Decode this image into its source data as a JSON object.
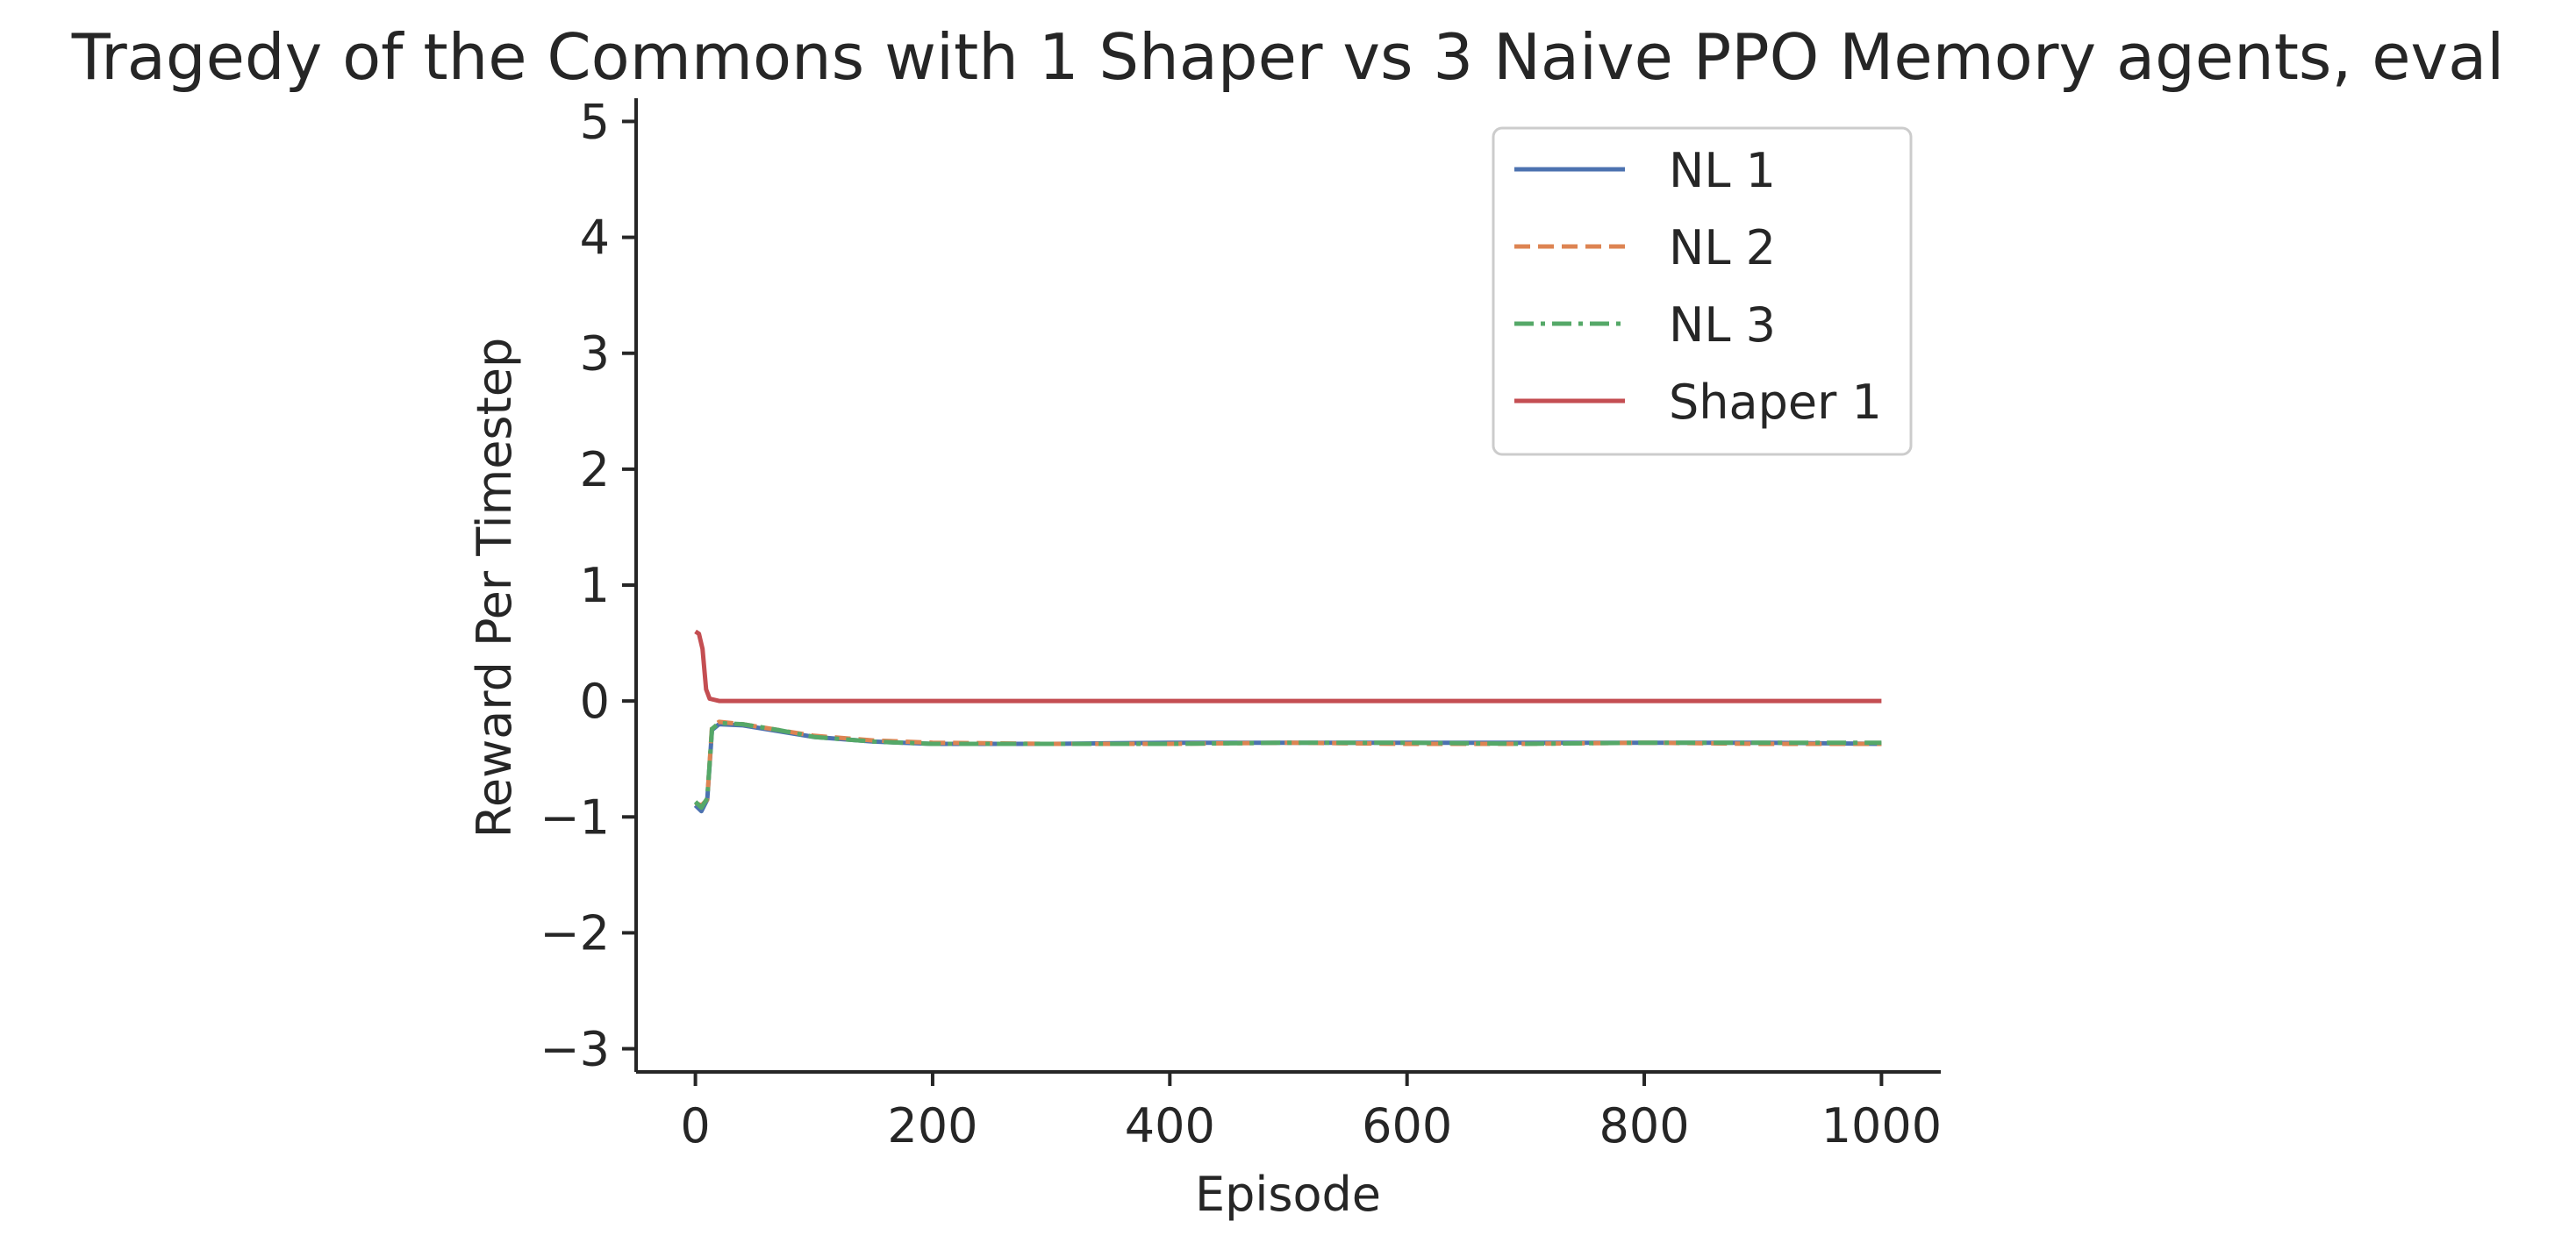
{
  "chart_data": {
    "type": "line",
    "title": "Tragedy of the Commons with 1 Shaper vs 3 Naive PPO Memory agents, eval",
    "xlabel": "Episode",
    "ylabel": "Reward Per Timestep",
    "xlim": [
      -50,
      1050
    ],
    "ylim": [
      -3.2,
      5.2
    ],
    "xticks": [
      0,
      200,
      400,
      600,
      800,
      1000
    ],
    "yticks": [
      -3,
      -2,
      -1,
      0,
      1,
      2,
      3,
      4,
      5
    ],
    "xtick_labels": [
      "0",
      "200",
      "400",
      "600",
      "800",
      "1000"
    ],
    "ytick_labels": [
      "−3",
      "−2",
      "−1",
      "0",
      "1",
      "2",
      "3",
      "4",
      "5"
    ],
    "grid": false,
    "legend_position": "top-right",
    "series": [
      {
        "name": "NL 1",
        "color": "#4c72b0",
        "dash": "solid",
        "points": [
          [
            0,
            -0.9
          ],
          [
            5,
            -0.95
          ],
          [
            10,
            -0.85
          ],
          [
            14,
            -0.25
          ],
          [
            20,
            -0.2
          ],
          [
            40,
            -0.21
          ],
          [
            70,
            -0.26
          ],
          [
            100,
            -0.31
          ],
          [
            150,
            -0.35
          ],
          [
            200,
            -0.37
          ],
          [
            300,
            -0.37
          ],
          [
            400,
            -0.36
          ],
          [
            500,
            -0.36
          ],
          [
            600,
            -0.36
          ],
          [
            700,
            -0.36
          ],
          [
            800,
            -0.36
          ],
          [
            900,
            -0.36
          ],
          [
            1000,
            -0.37
          ]
        ]
      },
      {
        "name": "NL 2",
        "color": "#dd8452",
        "dash": "dashed",
        "points": [
          [
            0,
            -0.88
          ],
          [
            5,
            -0.9
          ],
          [
            10,
            -0.85
          ],
          [
            14,
            -0.22
          ],
          [
            20,
            -0.18
          ],
          [
            40,
            -0.2
          ],
          [
            70,
            -0.25
          ],
          [
            100,
            -0.3
          ],
          [
            150,
            -0.34
          ],
          [
            200,
            -0.36
          ],
          [
            300,
            -0.37
          ],
          [
            400,
            -0.37
          ],
          [
            500,
            -0.36
          ],
          [
            600,
            -0.37
          ],
          [
            700,
            -0.37
          ],
          [
            800,
            -0.36
          ],
          [
            900,
            -0.37
          ],
          [
            1000,
            -0.37
          ]
        ]
      },
      {
        "name": "NL 3",
        "color": "#55a868",
        "dash": "dashdot",
        "points": [
          [
            0,
            -0.87
          ],
          [
            5,
            -0.92
          ],
          [
            10,
            -0.84
          ],
          [
            14,
            -0.24
          ],
          [
            20,
            -0.19
          ],
          [
            40,
            -0.2
          ],
          [
            70,
            -0.25
          ],
          [
            100,
            -0.31
          ],
          [
            150,
            -0.35
          ],
          [
            200,
            -0.37
          ],
          [
            300,
            -0.37
          ],
          [
            400,
            -0.37
          ],
          [
            500,
            -0.36
          ],
          [
            600,
            -0.36
          ],
          [
            700,
            -0.37
          ],
          [
            800,
            -0.36
          ],
          [
            900,
            -0.36
          ],
          [
            1000,
            -0.36
          ]
        ]
      },
      {
        "name": "Shaper 1",
        "color": "#c44e52",
        "dash": "solid",
        "points": [
          [
            0,
            0.6
          ],
          [
            3,
            0.58
          ],
          [
            6,
            0.45
          ],
          [
            9,
            0.1
          ],
          [
            12,
            0.02
          ],
          [
            20,
            0.0
          ],
          [
            100,
            0.0
          ],
          [
            200,
            0.0
          ],
          [
            300,
            0.0
          ],
          [
            400,
            0.0
          ],
          [
            500,
            0.0
          ],
          [
            600,
            0.0
          ],
          [
            700,
            0.0
          ],
          [
            800,
            0.0
          ],
          [
            900,
            0.0
          ],
          [
            1000,
            0.0
          ]
        ]
      }
    ]
  }
}
